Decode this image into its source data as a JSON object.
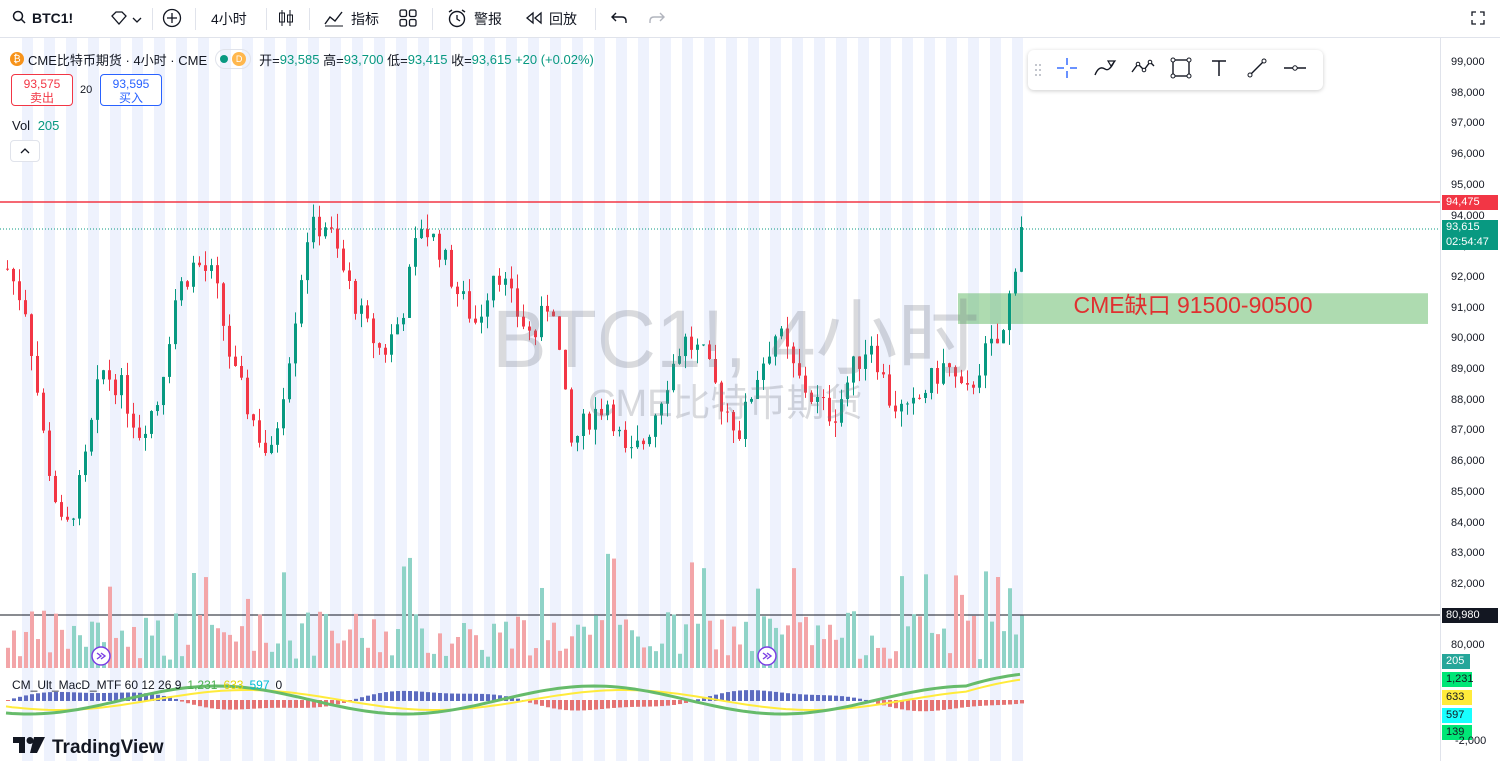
{
  "toolbar": {
    "symbol": "BTC1!",
    "interval": "4小时",
    "indicators_label": "指标",
    "alert_label": "警报",
    "replay_label": "回放"
  },
  "legend": {
    "title": "CME比特币期货 · 4小时 · CME",
    "coin_glyph": "₿",
    "d_badge": "D",
    "open_label": "开=",
    "open": "93,585",
    "high_label": "高=",
    "high": "93,700",
    "low_label": "低=",
    "low": "93,415",
    "close_label": "收=",
    "close": "93,615",
    "change": "+20 (+0.02%)"
  },
  "trade": {
    "sell_price": "93,575",
    "sell_label": "卖出",
    "spread": "20",
    "buy_price": "93,595",
    "buy_label": "买入"
  },
  "volume": {
    "label": "Vol",
    "value": "205"
  },
  "watermark": {
    "symbol": "BTC1!, 4小时",
    "name": "CME比特币期货"
  },
  "annotation": {
    "gap_text": "CME缺口 91500-90500"
  },
  "price_axis": {
    "labels": [
      "99,000",
      "98,000",
      "97,000",
      "96,000",
      "95,000",
      "94,000",
      "93,000",
      "92,000",
      "91,000",
      "90,000",
      "89,000",
      "88,000",
      "87,000",
      "86,000",
      "85,000",
      "84,000",
      "83,000",
      "82,000",
      "81,000",
      "80,000"
    ],
    "resistance_tag": "94,475",
    "last_price_tag": "93,615",
    "countdown_tag": "02:54:47",
    "support_tag": "80,980",
    "volume_tag": "205",
    "macd_tags": [
      "1,231",
      "633",
      "597",
      "139"
    ],
    "macd_axis_label": "-2,000"
  },
  "macd": {
    "name": "CM_Ult_MacD_MTF 60 12 26 9",
    "v1": "1,231",
    "v2": "633",
    "v3": "597",
    "v4": "0"
  },
  "brand": "TradingView",
  "colors": {
    "up": "#089981",
    "down": "#f23645",
    "resistance": "#f23645",
    "gap_zone": "#4caf50"
  }
}
